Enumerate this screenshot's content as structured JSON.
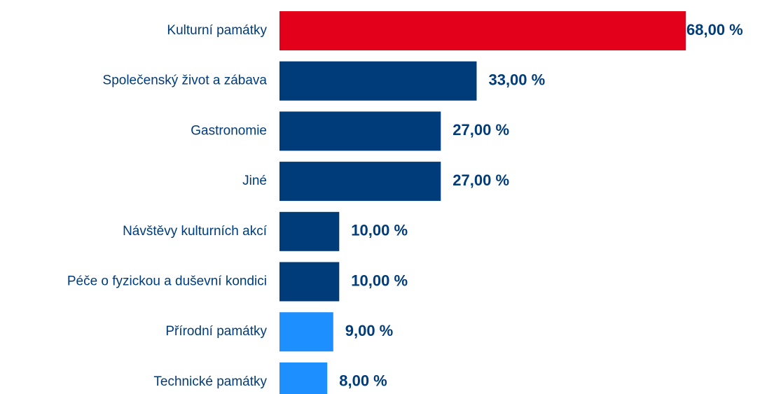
{
  "chart_data": {
    "type": "barh",
    "categories": [
      "Kulturní památky",
      "Společenský život a zábava",
      "Gastronomie",
      "Jiné",
      "Návštěvy kulturních akcí",
      "Péče o fyzickou a duševní kondici",
      "Přírodní památky",
      "Technické památky"
    ],
    "values": [
      68,
      33,
      27,
      27,
      10,
      10,
      9,
      8
    ],
    "value_labels": [
      "68,00 %",
      "33,00 %",
      "27,00 %",
      "27,00 %",
      "10,00 %",
      "10,00 %",
      "9,00 %",
      "8,00 %"
    ],
    "colors": [
      "#e2001a",
      "#003c7a",
      "#003c7a",
      "#003c7a",
      "#003c7a",
      "#003c7a",
      "#1e8fff",
      "#1e8fff"
    ],
    "label_color": "#003c7a"
  }
}
